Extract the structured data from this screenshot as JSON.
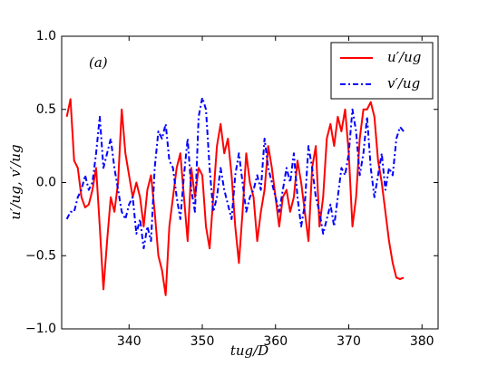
{
  "chart_data": {
    "type": "line",
    "xlabel": "tug/D",
    "ylabel": "u′/ug, v′/ug",
    "annotation": "(a)",
    "x": [
      331.5,
      332,
      332.5,
      333,
      333.5,
      334,
      334.5,
      335,
      335.5,
      336,
      336.5,
      337,
      337.5,
      338,
      338.5,
      339,
      339.5,
      340,
      340.5,
      341,
      341.5,
      342,
      342.5,
      343,
      343.5,
      344,
      344.5,
      345,
      345.5,
      346,
      346.5,
      347,
      347.5,
      348,
      348.5,
      349,
      349.5,
      350,
      350.5,
      351,
      351.5,
      352,
      352.5,
      353,
      353.5,
      354,
      354.5,
      355,
      355.5,
      356,
      356.5,
      357,
      357.5,
      358,
      358.5,
      359,
      359.5,
      360,
      360.5,
      361,
      361.5,
      362,
      362.5,
      363,
      363.5,
      364,
      364.5,
      365,
      365.5,
      366,
      366.5,
      367,
      367.5,
      368,
      368.5,
      369,
      369.5,
      370,
      370.5,
      371,
      371.5,
      372,
      372.5,
      373,
      373.5,
      374,
      374.5,
      375,
      375.5,
      376,
      376.5,
      377,
      377.5
    ],
    "series": [
      {
        "name": "u′/ug",
        "color": "#ff0000",
        "dash": "solid",
        "values": [
          0.45,
          0.57,
          0.15,
          0.1,
          -0.1,
          -0.17,
          -0.15,
          -0.05,
          0.1,
          -0.3,
          -0.73,
          -0.4,
          -0.1,
          -0.2,
          0.0,
          0.5,
          0.2,
          0.05,
          -0.1,
          0.0,
          -0.1,
          -0.3,
          -0.05,
          0.05,
          -0.2,
          -0.5,
          -0.6,
          -0.77,
          -0.3,
          -0.1,
          0.1,
          0.2,
          -0.1,
          -0.4,
          0.1,
          -0.1,
          0.1,
          0.05,
          -0.3,
          -0.45,
          -0.1,
          0.25,
          0.4,
          0.2,
          0.3,
          0.05,
          -0.3,
          -0.55,
          -0.2,
          0.2,
          0.0,
          -0.1,
          -0.4,
          -0.2,
          -0.05,
          0.25,
          0.1,
          -0.1,
          -0.3,
          -0.1,
          -0.05,
          -0.2,
          -0.1,
          0.15,
          0.0,
          -0.2,
          -0.4,
          0.1,
          0.25,
          -0.3,
          -0.1,
          0.3,
          0.4,
          0.25,
          0.45,
          0.35,
          0.5,
          0.2,
          -0.3,
          -0.1,
          0.3,
          0.5,
          0.5,
          0.55,
          0.45,
          0.15,
          0.0,
          -0.2,
          -0.4,
          -0.55,
          -0.65,
          -0.66,
          -0.65
        ]
      },
      {
        "name": "v′/ug",
        "color": "#0000ff",
        "dash": "dashdot",
        "values": [
          -0.25,
          -0.2,
          -0.2,
          -0.1,
          -0.05,
          0.05,
          -0.05,
          0.0,
          0.2,
          0.45,
          0.1,
          0.2,
          0.3,
          0.1,
          -0.05,
          -0.2,
          -0.25,
          -0.15,
          -0.1,
          -0.35,
          -0.25,
          -0.45,
          -0.3,
          -0.4,
          0.1,
          0.35,
          0.3,
          0.4,
          0.15,
          0.1,
          -0.1,
          -0.25,
          0.05,
          0.3,
          -0.05,
          -0.2,
          0.45,
          0.58,
          0.5,
          0.1,
          -0.2,
          -0.1,
          0.1,
          -0.05,
          -0.15,
          -0.25,
          0.05,
          0.2,
          0.0,
          -0.2,
          -0.1,
          -0.05,
          0.05,
          -0.05,
          0.3,
          0.1,
          0.0,
          -0.1,
          -0.2,
          -0.05,
          0.1,
          0.0,
          0.2,
          -0.1,
          -0.3,
          -0.15,
          0.25,
          0.1,
          -0.1,
          -0.2,
          -0.35,
          -0.25,
          -0.15,
          -0.3,
          -0.1,
          0.1,
          0.05,
          0.2,
          0.5,
          0.35,
          0.05,
          0.2,
          0.45,
          0.1,
          -0.1,
          0.05,
          0.2,
          -0.05,
          0.1,
          0.05,
          0.3,
          0.38,
          0.35
        ]
      }
    ],
    "xlim": [
      330.8,
      382.2
    ],
    "xticks": [
      340,
      350,
      360,
      370,
      380
    ],
    "ylim": [
      -1,
      1
    ],
    "yticks": [
      {
        "value": -1,
        "label": "−1.0"
      },
      {
        "value": -0.5,
        "label": "−0.5"
      },
      {
        "value": 0,
        "label": "0.0"
      },
      0.5,
      {
        "value": 1,
        "label": "1.0"
      }
    ],
    "legend": "upper right",
    "grid": false
  }
}
